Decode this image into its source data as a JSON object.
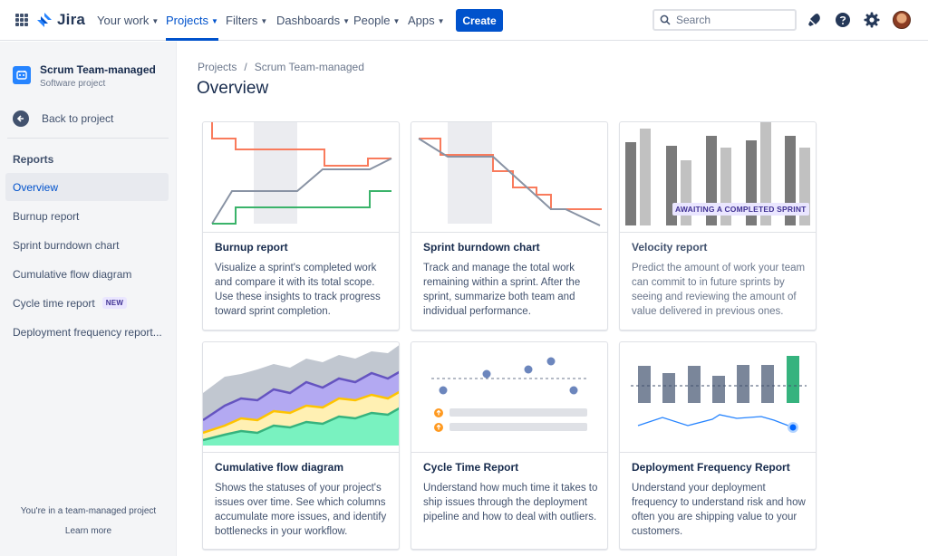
{
  "topnav": {
    "logo": "Jira",
    "items": [
      {
        "label": "Your work"
      },
      {
        "label": "Projects"
      },
      {
        "label": "Filters"
      },
      {
        "label": "Dashboards"
      },
      {
        "label": "People"
      },
      {
        "label": "Apps"
      }
    ],
    "create": "Create",
    "search_placeholder": "Search"
  },
  "sidebar": {
    "project_name": "Scrum Team-managed",
    "project_type": "Software project",
    "back": "Back to project",
    "section": "Reports",
    "items": [
      {
        "label": "Overview"
      },
      {
        "label": "Burnup report"
      },
      {
        "label": "Sprint burndown chart"
      },
      {
        "label": "Cumulative flow diagram"
      },
      {
        "label": "Cycle time report",
        "badge": "NEW"
      },
      {
        "label": "Deployment frequency report..."
      }
    ],
    "footer_text": "You're in a team-managed project",
    "footer_link": "Learn more"
  },
  "breadcrumb": {
    "root": "Projects",
    "separator": "/",
    "current": "Scrum Team-managed"
  },
  "page_title": "Overview",
  "cards": [
    {
      "title": "Burnup report",
      "desc": "Visualize a sprint's completed work and compare it with its total scope. Use these insights to track progress toward sprint completion."
    },
    {
      "title": "Sprint burndown chart",
      "desc": "Track and manage the total work remaining within a sprint. After the sprint, summarize both team and individual performance."
    },
    {
      "title": "Velocity report",
      "desc": "Predict the amount of work your team can commit to in future sprints by seeing and reviewing the amount of value delivered in previous ones.",
      "badge": "AWAITING A COMPLETED SPRINT"
    },
    {
      "title": "Cumulative flow diagram",
      "desc": "Shows the statuses of your project's issues over time. See which columns accumulate more issues, and identify bottlenecks in your workflow."
    },
    {
      "title": "Cycle Time Report",
      "desc": "Understand how much time it takes to ship issues through the deployment pipeline and how to deal with outliers."
    },
    {
      "title": "Deployment Frequency Report",
      "desc": "Understand your deployment frequency to understand risk and how often you are shipping value to your customers."
    }
  ],
  "colors": {
    "brand": "#0052cc",
    "burnup_orange": "#f97b5c",
    "burnup_green": "#3ab36a",
    "grey_line": "#8993a4"
  }
}
